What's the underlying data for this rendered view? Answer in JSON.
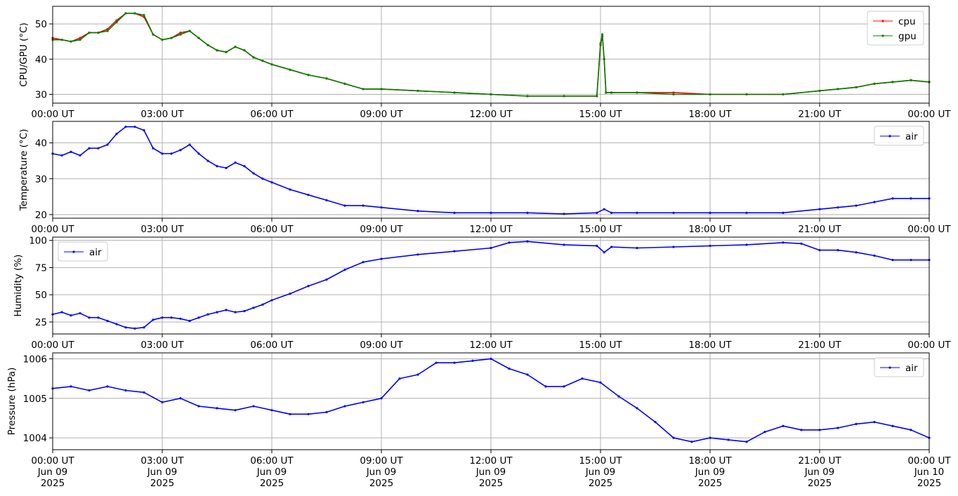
{
  "chart_data": [
    {
      "type": "line",
      "ylabel": "CPU/GPU (°C)",
      "ylim": [
        27.5,
        55
      ],
      "yticks": [
        30,
        40,
        50
      ],
      "x_tick_labels": [
        [
          "00:00 UT"
        ],
        [
          "03:00 UT"
        ],
        [
          "06:00 UT"
        ],
        [
          "09:00 UT"
        ],
        [
          "12:00 UT"
        ],
        [
          "15:00 UT"
        ],
        [
          "18:00 UT"
        ],
        [
          "21:00 UT"
        ],
        [
          "00:00 UT"
        ]
      ],
      "legend_position": "top-right",
      "grid": true,
      "series": [
        {
          "name": "cpu",
          "color": "#ff0000",
          "x": [
            0.0,
            0.25,
            0.5,
            0.75,
            1.0,
            1.25,
            1.5,
            1.75,
            2.0,
            2.25,
            2.5,
            2.75,
            3.0,
            3.25,
            3.5,
            3.75,
            4.0,
            4.25,
            4.5,
            4.75,
            5.0,
            5.25,
            5.5,
            5.75,
            6.0,
            6.5,
            7.0,
            7.5,
            8.0,
            8.5,
            9.0,
            10.0,
            11.0,
            12.0,
            13.0,
            14.0,
            14.9,
            15.0,
            15.05,
            15.1,
            15.15,
            15.3,
            16.0,
            17.0,
            18.0,
            19.0,
            20.0,
            21.0,
            21.5,
            22.0,
            22.5,
            23.0,
            23.5,
            24.0
          ],
          "values": [
            46,
            45.5,
            45,
            46,
            47.5,
            47.5,
            48.5,
            51,
            53,
            53,
            52,
            47,
            45.5,
            46,
            47.5,
            48,
            46,
            44,
            42.5,
            42,
            43.5,
            42.5,
            40.5,
            39.5,
            38.5,
            37,
            35.5,
            34.5,
            33,
            31.5,
            31.5,
            31,
            30.5,
            30,
            29.5,
            29.5,
            29.5,
            44,
            46.5,
            40,
            30.5,
            30.5,
            30.5,
            30.5,
            30,
            30,
            30,
            31,
            31.5,
            32,
            33,
            33.5,
            34,
            33.5
          ]
        },
        {
          "name": "gpu",
          "color": "#008000",
          "x": [
            0.0,
            0.25,
            0.5,
            0.75,
            1.0,
            1.25,
            1.5,
            1.75,
            2.0,
            2.25,
            2.5,
            2.75,
            3.0,
            3.25,
            3.5,
            3.75,
            4.0,
            4.25,
            4.5,
            4.75,
            5.0,
            5.25,
            5.5,
            5.75,
            6.0,
            6.5,
            7.0,
            7.5,
            8.0,
            8.5,
            9.0,
            10.0,
            11.0,
            12.0,
            13.0,
            14.0,
            14.9,
            15.0,
            15.05,
            15.1,
            15.15,
            15.3,
            16.0,
            17.0,
            18.0,
            19.0,
            20.0,
            21.0,
            21.5,
            22.0,
            22.5,
            23.0,
            23.5,
            24.0
          ],
          "values": [
            45.5,
            45.5,
            45,
            45.5,
            47.5,
            47.5,
            48,
            50.5,
            53,
            53,
            52.5,
            47,
            45.5,
            46,
            47,
            48,
            46,
            44,
            42.5,
            42,
            43.5,
            42.5,
            40.5,
            39.5,
            38.5,
            37,
            35.5,
            34.5,
            33,
            31.5,
            31.5,
            31,
            30.5,
            30,
            29.5,
            29.5,
            29.5,
            44.5,
            47,
            40,
            30.5,
            30.5,
            30.5,
            30,
            30,
            30,
            30,
            31,
            31.5,
            32,
            33,
            33.5,
            34,
            33.5
          ]
        }
      ]
    },
    {
      "type": "line",
      "ylabel": "Temperature (°C)",
      "ylim": [
        19,
        46
      ],
      "yticks": [
        20,
        30,
        40
      ],
      "x_tick_labels": [
        [
          "00:00 UT"
        ],
        [
          "03:00 UT"
        ],
        [
          "06:00 UT"
        ],
        [
          "09:00 UT"
        ],
        [
          "12:00 UT"
        ],
        [
          "15:00 UT"
        ],
        [
          "18:00 UT"
        ],
        [
          "21:00 UT"
        ],
        [
          "00:00 UT"
        ]
      ],
      "legend_position": "top-right",
      "grid": true,
      "series": [
        {
          "name": "air",
          "color": "#0000ff",
          "x": [
            0.0,
            0.25,
            0.5,
            0.75,
            1.0,
            1.25,
            1.5,
            1.75,
            2.0,
            2.25,
            2.5,
            2.75,
            3.0,
            3.25,
            3.5,
            3.75,
            4.0,
            4.25,
            4.5,
            4.75,
            5.0,
            5.25,
            5.5,
            5.75,
            6.0,
            6.5,
            7.0,
            7.5,
            8.0,
            8.5,
            9.0,
            10.0,
            11.0,
            12.0,
            13.0,
            14.0,
            14.9,
            15.1,
            15.3,
            16.0,
            17.0,
            18.0,
            19.0,
            20.0,
            21.0,
            21.5,
            22.0,
            22.5,
            23.0,
            23.5,
            24.0
          ],
          "values": [
            37,
            36.5,
            37.5,
            36.5,
            38.5,
            38.5,
            39.5,
            42.5,
            44.5,
            44.5,
            43.5,
            38.5,
            37,
            37,
            38,
            39.5,
            37,
            35,
            33.5,
            33,
            34.5,
            33.5,
            31.5,
            30,
            29,
            27,
            25.5,
            24,
            22.5,
            22.5,
            22,
            21,
            20.5,
            20.5,
            20.5,
            20.2,
            20.5,
            21.5,
            20.5,
            20.5,
            20.5,
            20.5,
            20.5,
            20.5,
            21.5,
            22,
            22.5,
            23.5,
            24.5,
            24.5,
            24.5
          ]
        }
      ]
    },
    {
      "type": "line",
      "ylabel": "Humidity (%)",
      "ylim": [
        14,
        103
      ],
      "yticks": [
        25,
        50,
        75,
        100
      ],
      "x_tick_labels": [
        [
          "00:00 UT"
        ],
        [
          "03:00 UT"
        ],
        [
          "06:00 UT"
        ],
        [
          "09:00 UT"
        ],
        [
          "12:00 UT"
        ],
        [
          "15:00 UT"
        ],
        [
          "18:00 UT"
        ],
        [
          "21:00 UT"
        ],
        [
          "00:00 UT"
        ]
      ],
      "legend_position": "top-left",
      "grid": true,
      "series": [
        {
          "name": "air",
          "color": "#0000ff",
          "x": [
            0.0,
            0.25,
            0.5,
            0.75,
            1.0,
            1.25,
            1.5,
            1.75,
            2.0,
            2.25,
            2.5,
            2.75,
            3.0,
            3.25,
            3.5,
            3.75,
            4.0,
            4.25,
            4.5,
            4.75,
            5.0,
            5.25,
            5.5,
            5.75,
            6.0,
            6.5,
            7.0,
            7.5,
            8.0,
            8.5,
            9.0,
            10.0,
            11.0,
            12.0,
            12.5,
            13.0,
            14.0,
            14.9,
            15.1,
            15.3,
            16.0,
            17.0,
            18.0,
            19.0,
            20.0,
            20.5,
            21.0,
            21.5,
            22.0,
            22.5,
            23.0,
            23.5,
            24.0
          ],
          "values": [
            32,
            34,
            31,
            33,
            29,
            29,
            26,
            23,
            20,
            19,
            20,
            27,
            29,
            29,
            28,
            26,
            29,
            32,
            34,
            36,
            34,
            35,
            38,
            41,
            45,
            51,
            58,
            64,
            73,
            80,
            83,
            87,
            90,
            93,
            98,
            99,
            96,
            95,
            89,
            94,
            93,
            94,
            95,
            96,
            98,
            97,
            91,
            91,
            89,
            86,
            82,
            82,
            82
          ]
        }
      ]
    },
    {
      "type": "line",
      "ylabel": "Pressure (hPa)",
      "ylim": [
        1003.7,
        1006.15
      ],
      "yticks": [
        1004,
        1005,
        1006
      ],
      "x_tick_labels": [
        [
          "00:00 UT",
          "Jun 09",
          "2025"
        ],
        [
          "03:00 UT",
          "Jun 09",
          "2025"
        ],
        [
          "06:00 UT",
          "Jun 09",
          "2025"
        ],
        [
          "09:00 UT",
          "Jun 09",
          "2025"
        ],
        [
          "12:00 UT",
          "Jun 09",
          "2025"
        ],
        [
          "15:00 UT",
          "Jun 09",
          "2025"
        ],
        [
          "18:00 UT",
          "Jun 09",
          "2025"
        ],
        [
          "21:00 UT",
          "Jun 09",
          "2025"
        ],
        [
          "00:00 UT",
          "Jun 10",
          "2025"
        ]
      ],
      "legend_position": "top-right",
      "grid": true,
      "series": [
        {
          "name": "air",
          "color": "#0000ff",
          "x": [
            0.0,
            0.5,
            1.0,
            1.5,
            2.0,
            2.5,
            3.0,
            3.5,
            4.0,
            4.5,
            5.0,
            5.5,
            6.0,
            6.5,
            7.0,
            7.5,
            8.0,
            8.5,
            9.0,
            9.5,
            10.0,
            10.5,
            11.0,
            11.5,
            12.0,
            12.5,
            13.0,
            13.5,
            14.0,
            14.5,
            15.0,
            15.5,
            16.0,
            16.5,
            17.0,
            17.5,
            18.0,
            18.5,
            19.0,
            19.5,
            20.0,
            20.5,
            21.0,
            21.5,
            22.0,
            22.5,
            23.0,
            23.5,
            24.0
          ],
          "values": [
            1005.25,
            1005.3,
            1005.2,
            1005.3,
            1005.2,
            1005.15,
            1004.9,
            1005.0,
            1004.8,
            1004.75,
            1004.7,
            1004.8,
            1004.7,
            1004.6,
            1004.6,
            1004.65,
            1004.8,
            1004.9,
            1005.0,
            1005.5,
            1005.6,
            1005.9,
            1005.9,
            1005.95,
            1006.0,
            1005.75,
            1005.6,
            1005.3,
            1005.3,
            1005.5,
            1005.4,
            1005.05,
            1004.75,
            1004.4,
            1004.0,
            1003.9,
            1004.0,
            1003.95,
            1003.9,
            1004.15,
            1004.3,
            1004.2,
            1004.2,
            1004.25,
            1004.35,
            1004.4,
            1004.3,
            1004.2,
            1004.0
          ]
        }
      ]
    }
  ]
}
